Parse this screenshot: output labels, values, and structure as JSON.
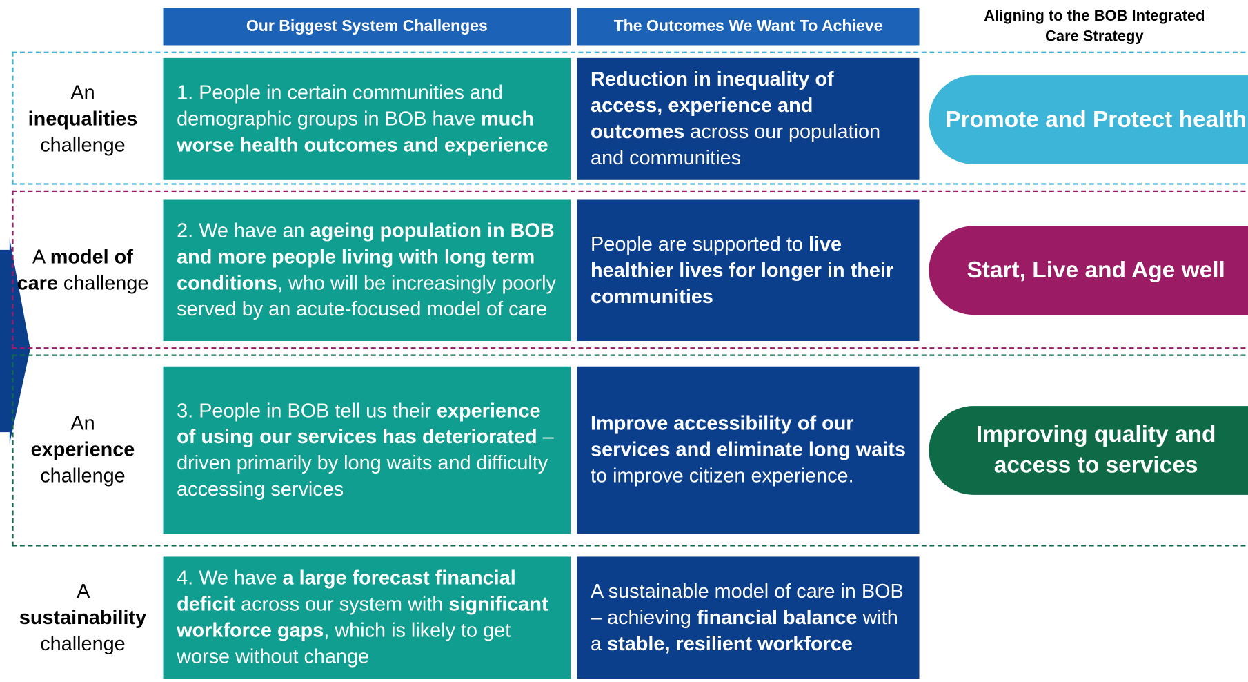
{
  "header": {
    "challenges": "Our Biggest System Challenges",
    "outcomes": "The Outcomes We Want To Achieve",
    "strategy": "Aligning to the BOB Integrated Care Strategy"
  },
  "rows": [
    {
      "label": [
        {
          "text": "An ",
          "bold": false
        },
        {
          "text": "inequalities",
          "bold": true
        },
        {
          "text": " challenge",
          "bold": false
        }
      ],
      "challenge": [
        {
          "text": "1. People in certain communities and demographic groups in BOB have ",
          "bold": false
        },
        {
          "text": "much worse health outcomes and experience",
          "bold": true
        }
      ],
      "outcome": [
        {
          "text": "Reduction in inequality of access, experience and outcomes",
          "bold": true
        },
        {
          "text": " across our population and communities",
          "bold": false
        }
      ],
      "strategy": {
        "text": "Promote and Protect health",
        "color": "#3db5d8"
      }
    },
    {
      "label": [
        {
          "text": "A ",
          "bold": false
        },
        {
          "text": "model of care",
          "bold": true
        },
        {
          "text": " challenge",
          "bold": false
        }
      ],
      "challenge": [
        {
          "text": "2. We have an ",
          "bold": false
        },
        {
          "text": "ageing population in BOB and more people living with long term conditions",
          "bold": true
        },
        {
          "text": ", who will be increasingly poorly served by an acute-focused model of care",
          "bold": false
        }
      ],
      "outcome": [
        {
          "text": "People are supported to ",
          "bold": false
        },
        {
          "text": "live healthier lives for longer in their communities",
          "bold": true
        }
      ],
      "strategy": {
        "text": "Start, Live and Age well",
        "color": "#9c1b65"
      }
    },
    {
      "label": [
        {
          "text": "An ",
          "bold": false
        },
        {
          "text": "experience",
          "bold": true
        },
        {
          "text": " challenge",
          "bold": false
        }
      ],
      "challenge": [
        {
          "text": "3. People in BOB tell us their ",
          "bold": false
        },
        {
          "text": "experience of using our services has deteriorated",
          "bold": true
        },
        {
          "text": " – driven primarily by long waits and difficulty accessing services",
          "bold": false
        }
      ],
      "outcome": [
        {
          "text": "Improve accessibility of our services and eliminate long waits",
          "bold": true
        },
        {
          "text": " to improve citizen experience.",
          "bold": false
        }
      ],
      "strategy": {
        "text": "Improving quality and access to services",
        "color": "#0f6b47"
      }
    },
    {
      "label": [
        {
          "text": "A ",
          "bold": false
        },
        {
          "text": "sustainability",
          "bold": true
        },
        {
          "text": " challenge",
          "bold": false
        }
      ],
      "challenge": [
        {
          "text": "4. We have ",
          "bold": false
        },
        {
          "text": "a large forecast financial deficit",
          "bold": true
        },
        {
          "text": " across our system with ",
          "bold": false
        },
        {
          "text": "significant workforce gaps",
          "bold": true
        },
        {
          "text": ", which is likely to get worse without change",
          "bold": false
        }
      ],
      "outcome": [
        {
          "text": "A sustainable model of care in BOB – achieving ",
          "bold": false
        },
        {
          "text": "financial balance",
          "bold": true
        },
        {
          "text": " with a ",
          "bold": false
        },
        {
          "text": "stable, resilient workforce",
          "bold": true
        }
      ]
    }
  ]
}
